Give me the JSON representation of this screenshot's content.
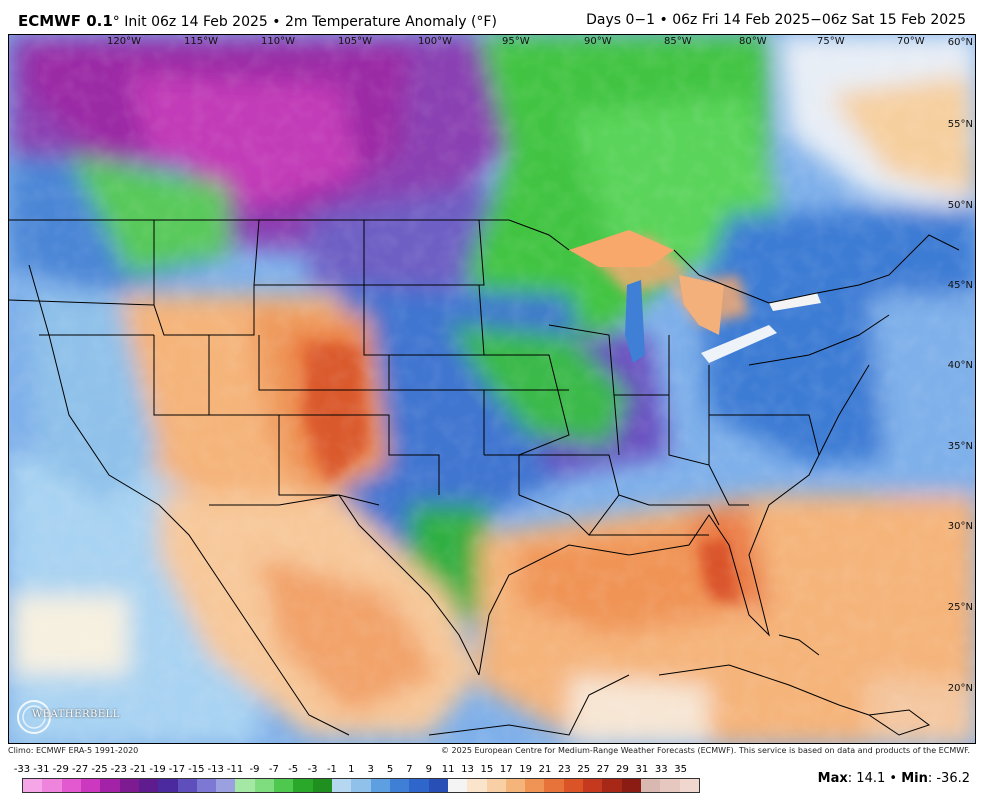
{
  "header": {
    "model": "ECMWF 0.1",
    "subtitle": "° Init 06z 14 Feb 2025 • 2m Temperature Anomaly (°F)",
    "valid": "Days 0−1 • 06z Fri 14 Feb 2025−06z Sat 15 Feb 2025"
  },
  "map": {
    "longitudes": [
      "120°W",
      "115°W",
      "110°W",
      "105°W",
      "100°W",
      "95°W",
      "90°W",
      "85°W",
      "80°W",
      "75°W",
      "70°W"
    ],
    "latitudes": [
      "60°N",
      "55°N",
      "50°N",
      "45°N",
      "40°N",
      "35°N",
      "30°N",
      "25°N",
      "20°N"
    ]
  },
  "logo": {
    "text": "WEATHERBELL"
  },
  "footer": {
    "climo": "Climo: ECMWF ERA-5 1991-2020",
    "copyright": "© 2025 European Centre for Medium-Range Weather Forecasts (ECMWF). This service is based on data and products of the ECMWF."
  },
  "colorbar": {
    "ticks": [
      "-33",
      "-31",
      "-29",
      "-27",
      "-25",
      "-23",
      "-21",
      "-19",
      "-17",
      "-15",
      "-13",
      "-11",
      "-9",
      "-7",
      "-5",
      "-3",
      "-1",
      "1",
      "3",
      "5",
      "7",
      "9",
      "11",
      "13",
      "15",
      "17",
      "19",
      "21",
      "23",
      "25",
      "27",
      "29",
      "31",
      "33",
      "35"
    ],
    "colors": [
      "#f4a6e6",
      "#ee84dc",
      "#e35ad0",
      "#cc38c0",
      "#a422a8",
      "#7e1a92",
      "#5e1c8e",
      "#4a2a9e",
      "#5f4fbd",
      "#7d78d4",
      "#9aa0e0",
      "#a5e8a5",
      "#7fdc7f",
      "#4fc84f",
      "#2aa82a",
      "#1f8f1f",
      "#b5d7f0",
      "#8fc1ea",
      "#5d9fe0",
      "#3f7fd6",
      "#2f66cc",
      "#274fb5",
      "#f4f4f4",
      "#fbe4cc",
      "#f9cfa5",
      "#f5b47a",
      "#f09456",
      "#e8733a",
      "#da5428",
      "#c53a1e",
      "#a82818",
      "#8a1c14",
      "#d8b8b0",
      "#e6c8c0",
      "#f0d8d0"
    ]
  },
  "stats": {
    "max_label": "Max",
    "max_value": ": 14.1",
    "sep": " • ",
    "min_label": "Min",
    "min_value": ": -36.2"
  }
}
